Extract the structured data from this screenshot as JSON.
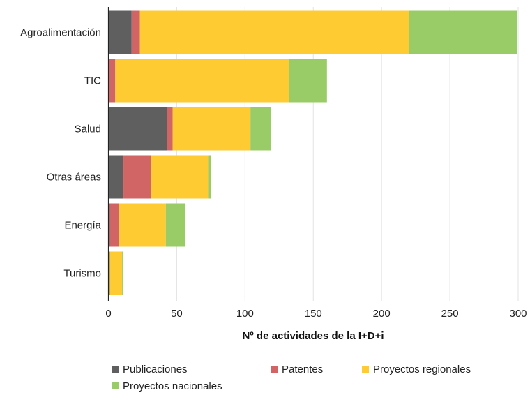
{
  "chart_data": {
    "type": "bar",
    "orientation": "horizontal",
    "stacked": true,
    "categories": [
      "Agroalimentación",
      "TIC",
      "Salud",
      "Otras áreas",
      "Energía",
      "Turismo"
    ],
    "series": [
      {
        "name": "Publicaciones",
        "color": "#5f5f5f",
        "values": [
          17,
          0,
          43,
          11,
          1,
          1
        ]
      },
      {
        "name": "Patentes",
        "color": "#d16464",
        "values": [
          6,
          5,
          4,
          20,
          7,
          0
        ]
      },
      {
        "name": "Proyectos regionales",
        "color": "#ffcb33",
        "values": [
          197,
          127,
          57,
          42,
          34,
          9
        ]
      },
      {
        "name": "Proyectos nacionales",
        "color": "#99cc66",
        "values": [
          79,
          28,
          15,
          2,
          14,
          1
        ]
      }
    ],
    "xlabel": "Nº de actividades de la I+D+i",
    "ylabel": "",
    "xlim": [
      0,
      300
    ],
    "xticks": [
      0,
      50,
      100,
      150,
      200,
      250,
      300
    ],
    "grid": "vertical",
    "legend": "bottom"
  }
}
